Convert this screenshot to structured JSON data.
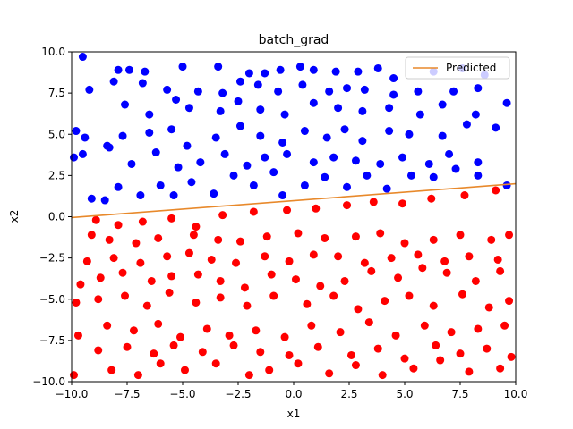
{
  "chart_data": {
    "type": "scatter",
    "title": "batch_grad",
    "xlabel": "x1",
    "ylabel": "x2",
    "xlim": [
      -10,
      10
    ],
    "ylim": [
      -10,
      10
    ],
    "x_ticks": [
      -10,
      -7.5,
      -5,
      -2.5,
      0,
      2.5,
      5,
      7.5,
      10
    ],
    "y_ticks": [
      -10,
      -7.5,
      -5,
      -2.5,
      0,
      2.5,
      5,
      7.5,
      10
    ],
    "x_tick_labels": [
      "−10.0",
      "−7.5",
      "−5.0",
      "−2.5",
      "0.0",
      "2.5",
      "5.0",
      "7.5",
      "10.0"
    ],
    "y_tick_labels": [
      "−10.0",
      "−7.5",
      "−5.0",
      "−2.5",
      "0.0",
      "2.5",
      "5.0",
      "7.5",
      "10.0"
    ],
    "grid": false,
    "legend": {
      "position": "top-right",
      "entries": [
        "Predicted"
      ]
    },
    "series": [
      {
        "class": "above",
        "color": "#0000ff",
        "points": [
          [
            -9.5,
            9.7
          ],
          [
            -7.9,
            8.9
          ],
          [
            -7.4,
            8.9
          ],
          [
            -6.7,
            8.8
          ],
          [
            -5.0,
            9.1
          ],
          [
            -3.4,
            9.1
          ],
          [
            -2.0,
            8.7
          ],
          [
            -1.3,
            8.7
          ],
          [
            -0.6,
            8.9
          ],
          [
            0.3,
            9.1
          ],
          [
            0.9,
            8.9
          ],
          [
            1.9,
            8.8
          ],
          [
            2.9,
            8.8
          ],
          [
            3.8,
            9.0
          ],
          [
            4.5,
            8.4
          ],
          [
            6.3,
            8.8
          ],
          [
            7.6,
            9.0
          ],
          [
            8.6,
            8.6
          ],
          [
            -9.2,
            7.7
          ],
          [
            -8.1,
            8.2
          ],
          [
            -6.8,
            8.1
          ],
          [
            -5.7,
            7.7
          ],
          [
            -4.3,
            7.6
          ],
          [
            -3.2,
            7.5
          ],
          [
            -2.4,
            8.2
          ],
          [
            -1.6,
            8.0
          ],
          [
            -0.7,
            7.6
          ],
          [
            0.4,
            8.0
          ],
          [
            1.6,
            7.6
          ],
          [
            2.4,
            7.8
          ],
          [
            3.2,
            7.7
          ],
          [
            4.5,
            7.4
          ],
          [
            5.6,
            7.6
          ],
          [
            7.2,
            7.6
          ],
          [
            8.3,
            7.8
          ],
          [
            -7.6,
            6.8
          ],
          [
            -6.5,
            6.2
          ],
          [
            -5.3,
            7.1
          ],
          [
            -4.7,
            6.6
          ],
          [
            -3.3,
            6.4
          ],
          [
            -2.5,
            7.0
          ],
          [
            -1.5,
            6.5
          ],
          [
            -0.4,
            6.2
          ],
          [
            0.9,
            6.9
          ],
          [
            2.0,
            6.6
          ],
          [
            3.1,
            6.4
          ],
          [
            4.3,
            6.6
          ],
          [
            5.7,
            6.2
          ],
          [
            6.7,
            6.8
          ],
          [
            8.2,
            6.2
          ],
          [
            9.6,
            6.9
          ],
          [
            -9.8,
            5.2
          ],
          [
            -9.4,
            4.8
          ],
          [
            -8.4,
            4.3
          ],
          [
            -7.7,
            4.9
          ],
          [
            -6.5,
            5.1
          ],
          [
            -5.5,
            5.3
          ],
          [
            -4.8,
            4.3
          ],
          [
            -3.5,
            4.8
          ],
          [
            -2.4,
            5.5
          ],
          [
            -1.5,
            4.9
          ],
          [
            -0.5,
            4.5
          ],
          [
            0.5,
            5.2
          ],
          [
            1.5,
            4.8
          ],
          [
            2.3,
            5.3
          ],
          [
            3.1,
            4.6
          ],
          [
            4.3,
            5.2
          ],
          [
            5.2,
            5.0
          ],
          [
            6.7,
            4.9
          ],
          [
            7.8,
            5.6
          ],
          [
            9.1,
            5.4
          ],
          [
            -9.9,
            3.6
          ],
          [
            -9.5,
            3.8
          ],
          [
            -8.3,
            4.2
          ],
          [
            -7.3,
            3.2
          ],
          [
            -6.2,
            3.9
          ],
          [
            -5.2,
            3.0
          ],
          [
            -4.2,
            3.3
          ],
          [
            -3.1,
            3.8
          ],
          [
            -2.1,
            3.1
          ],
          [
            -1.3,
            3.6
          ],
          [
            -0.3,
            3.8
          ],
          [
            0.9,
            3.3
          ],
          [
            1.8,
            3.6
          ],
          [
            2.8,
            3.4
          ],
          [
            3.9,
            3.2
          ],
          [
            4.9,
            3.6
          ],
          [
            6.1,
            3.2
          ],
          [
            7.0,
            3.8
          ],
          [
            8.3,
            3.3
          ],
          [
            -9.1,
            1.1
          ],
          [
            -8.5,
            1.0
          ],
          [
            -7.9,
            1.8
          ],
          [
            -6.9,
            1.3
          ],
          [
            -6.0,
            1.9
          ],
          [
            -5.4,
            1.3
          ],
          [
            -4.6,
            2.1
          ],
          [
            -3.6,
            1.4
          ],
          [
            -2.7,
            2.5
          ],
          [
            -1.8,
            1.9
          ],
          [
            -0.9,
            2.7
          ],
          [
            -0.5,
            1.3
          ],
          [
            0.5,
            1.9
          ],
          [
            1.4,
            2.4
          ],
          [
            2.4,
            1.8
          ],
          [
            3.3,
            2.5
          ],
          [
            4.2,
            1.7
          ],
          [
            5.3,
            2.5
          ],
          [
            6.3,
            2.4
          ],
          [
            7.3,
            2.9
          ],
          [
            8.3,
            2.5
          ],
          [
            9.6,
            1.9
          ]
        ]
      },
      {
        "class": "below",
        "color": "#ff0000",
        "points": [
          [
            -8.9,
            -0.2
          ],
          [
            -7.9,
            -0.5
          ],
          [
            -6.8,
            -0.3
          ],
          [
            -5.5,
            -0.1
          ],
          [
            -4.4,
            -0.6
          ],
          [
            -3.2,
            0.1
          ],
          [
            -1.8,
            0.3
          ],
          [
            -0.3,
            0.4
          ],
          [
            1.0,
            0.5
          ],
          [
            2.4,
            0.7
          ],
          [
            3.6,
            0.9
          ],
          [
            4.9,
            0.8
          ],
          [
            6.2,
            1.1
          ],
          [
            7.7,
            1.3
          ],
          [
            9.1,
            1.6
          ],
          [
            -9.1,
            -1.1
          ],
          [
            -8.3,
            -1.4
          ],
          [
            -7.1,
            -1.6
          ],
          [
            -6.1,
            -1.3
          ],
          [
            -4.5,
            -1.1
          ],
          [
            -3.4,
            -1.4
          ],
          [
            -2.4,
            -1.5
          ],
          [
            -1.2,
            -1.2
          ],
          [
            0.2,
            -1.0
          ],
          [
            1.4,
            -1.3
          ],
          [
            2.8,
            -1.2
          ],
          [
            3.9,
            -1.0
          ],
          [
            5.0,
            -1.6
          ],
          [
            6.3,
            -1.4
          ],
          [
            7.5,
            -1.1
          ],
          [
            8.9,
            -1.4
          ],
          [
            9.7,
            -1.1
          ],
          [
            -9.3,
            -2.7
          ],
          [
            -8.1,
            -2.5
          ],
          [
            -6.9,
            -2.8
          ],
          [
            -5.7,
            -2.4
          ],
          [
            -4.7,
            -2.2
          ],
          [
            -3.7,
            -2.6
          ],
          [
            -2.6,
            -2.8
          ],
          [
            -1.3,
            -2.4
          ],
          [
            -0.2,
            -2.7
          ],
          [
            0.9,
            -2.3
          ],
          [
            2.0,
            -2.4
          ],
          [
            3.2,
            -2.8
          ],
          [
            4.4,
            -2.5
          ],
          [
            5.6,
            -2.3
          ],
          [
            6.8,
            -2.7
          ],
          [
            7.9,
            -2.4
          ],
          [
            9.2,
            -2.6
          ],
          [
            -9.6,
            -4.1
          ],
          [
            -8.7,
            -3.7
          ],
          [
            -7.7,
            -3.4
          ],
          [
            -6.4,
            -3.9
          ],
          [
            -5.5,
            -3.6
          ],
          [
            -4.3,
            -3.5
          ],
          [
            -3.3,
            -3.9
          ],
          [
            -2.2,
            -4.3
          ],
          [
            -1.0,
            -3.5
          ],
          [
            0.1,
            -3.8
          ],
          [
            1.2,
            -4.2
          ],
          [
            2.3,
            -3.9
          ],
          [
            3.5,
            -3.3
          ],
          [
            4.7,
            -3.7
          ],
          [
            5.8,
            -3.1
          ],
          [
            6.9,
            -3.4
          ],
          [
            8.2,
            -3.9
          ],
          [
            9.3,
            -3.3
          ],
          [
            -9.8,
            -5.2
          ],
          [
            -8.8,
            -5.0
          ],
          [
            -7.6,
            -4.8
          ],
          [
            -6.6,
            -5.4
          ],
          [
            -5.6,
            -4.6
          ],
          [
            -4.4,
            -5.2
          ],
          [
            -3.3,
            -4.9
          ],
          [
            -2.1,
            -5.4
          ],
          [
            -0.9,
            -4.8
          ],
          [
            0.6,
            -5.3
          ],
          [
            1.8,
            -4.8
          ],
          [
            2.9,
            -5.6
          ],
          [
            4.1,
            -5.1
          ],
          [
            5.2,
            -4.8
          ],
          [
            6.3,
            -5.4
          ],
          [
            7.6,
            -4.7
          ],
          [
            8.8,
            -5.5
          ],
          [
            9.7,
            -5.1
          ],
          [
            -9.7,
            -7.2
          ],
          [
            -8.4,
            -6.6
          ],
          [
            -7.2,
            -6.9
          ],
          [
            -6.1,
            -6.5
          ],
          [
            -5.1,
            -7.3
          ],
          [
            -3.9,
            -6.8
          ],
          [
            -2.9,
            -7.2
          ],
          [
            -1.7,
            -6.9
          ],
          [
            -0.4,
            -7.3
          ],
          [
            0.8,
            -6.6
          ],
          [
            2.1,
            -7.0
          ],
          [
            3.4,
            -6.4
          ],
          [
            4.6,
            -7.2
          ],
          [
            5.9,
            -6.6
          ],
          [
            7.1,
            -7.0
          ],
          [
            8.3,
            -6.8
          ],
          [
            9.5,
            -6.6
          ],
          [
            -9.9,
            -9.6
          ],
          [
            -8.2,
            -9.3
          ],
          [
            -7.0,
            -9.6
          ],
          [
            -6.0,
            -8.9
          ],
          [
            -4.9,
            -9.3
          ],
          [
            -3.5,
            -8.9
          ],
          [
            -2.0,
            -9.6
          ],
          [
            -1.1,
            -9.3
          ],
          [
            0.2,
            -8.9
          ],
          [
            1.6,
            -9.5
          ],
          [
            2.8,
            -9.0
          ],
          [
            4.0,
            -9.6
          ],
          [
            5.4,
            -9.2
          ],
          [
            6.6,
            -8.7
          ],
          [
            7.9,
            -9.4
          ],
          [
            9.3,
            -9.2
          ],
          [
            -8.8,
            -8.1
          ],
          [
            -7.5,
            -7.9
          ],
          [
            -6.3,
            -8.3
          ],
          [
            -5.4,
            -7.8
          ],
          [
            -4.1,
            -8.2
          ],
          [
            -2.7,
            -7.8
          ],
          [
            -1.5,
            -8.2
          ],
          [
            -0.2,
            -8.4
          ],
          [
            1.1,
            -7.9
          ],
          [
            2.6,
            -8.4
          ],
          [
            3.8,
            -8.0
          ],
          [
            5.0,
            -8.6
          ],
          [
            6.4,
            -7.8
          ],
          [
            7.5,
            -8.3
          ],
          [
            8.7,
            -8.0
          ],
          [
            9.8,
            -8.5
          ]
        ]
      }
    ],
    "lines": [
      {
        "name": "Predicted",
        "color": "#e8892b",
        "x": [
          -10,
          10
        ],
        "y": [
          -0.05,
          2.0
        ]
      }
    ]
  }
}
